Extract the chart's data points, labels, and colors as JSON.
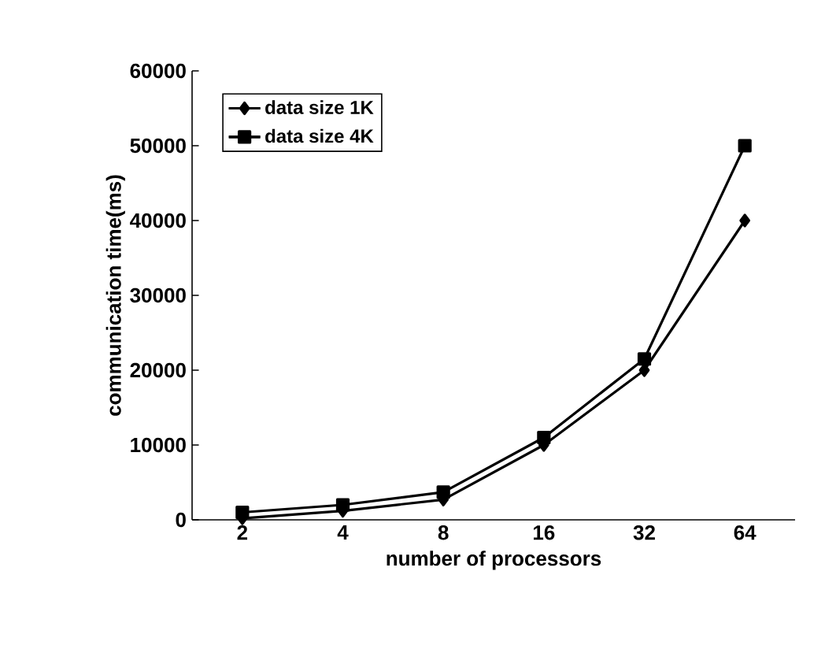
{
  "chart_data": {
    "type": "line",
    "xlabel": "number of processors",
    "ylabel": "communication time(ms)",
    "categories": [
      "2",
      "4",
      "8",
      "16",
      "32",
      "64"
    ],
    "ylim": [
      0,
      60000
    ],
    "yticks": [
      0,
      10000,
      20000,
      30000,
      40000,
      50000,
      60000
    ],
    "legend": "top left",
    "grid": false,
    "series": [
      {
        "name": "data size 1K",
        "color": "#000000",
        "marker": "diamond",
        "values": [
          200,
          1200,
          2700,
          10000,
          20000,
          40000
        ]
      },
      {
        "name": "data size 4K",
        "color": "#000000",
        "marker": "square",
        "values": [
          1000,
          2000,
          3700,
          11000,
          21500,
          50000
        ]
      }
    ]
  }
}
